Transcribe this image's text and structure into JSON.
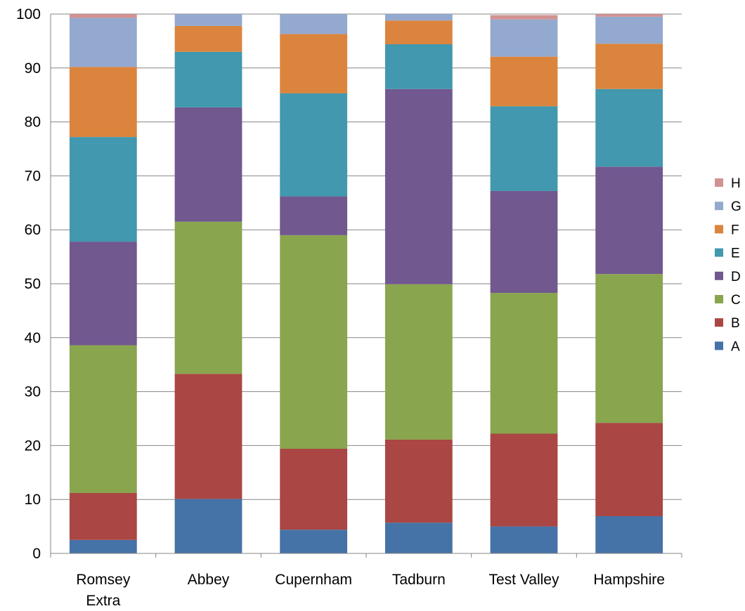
{
  "chart_data": {
    "type": "bar",
    "stacked": true,
    "title": "",
    "xlabel": "",
    "ylabel": "",
    "ylim": [
      0,
      100
    ],
    "yticks": [
      0,
      10,
      20,
      30,
      40,
      50,
      60,
      70,
      80,
      90,
      100
    ],
    "grid": true,
    "legend_position": "right",
    "categories": [
      {
        "lines": [
          "Romsey",
          "Extra"
        ]
      },
      {
        "lines": [
          "Abbey"
        ]
      },
      {
        "lines": [
          "Cupernham"
        ]
      },
      {
        "lines": [
          "Tadburn"
        ]
      },
      {
        "lines": [
          "Test Valley"
        ]
      },
      {
        "lines": [
          "Hampshire"
        ]
      }
    ],
    "series": [
      {
        "name": "A",
        "color": "#4572A7",
        "values": [
          2.5,
          10.1,
          4.4,
          5.7,
          5.0,
          6.9
        ]
      },
      {
        "name": "B",
        "color": "#AA4643",
        "values": [
          8.7,
          23.2,
          15.0,
          15.4,
          17.2,
          17.3
        ]
      },
      {
        "name": "C",
        "color": "#89A54E",
        "values": [
          27.4,
          28.2,
          39.6,
          28.8,
          26.1,
          27.6
        ]
      },
      {
        "name": "D",
        "color": "#71588F",
        "values": [
          19.2,
          21.2,
          7.2,
          36.2,
          18.9,
          19.9
        ]
      },
      {
        "name": "E",
        "color": "#4198AF",
        "values": [
          19.4,
          10.3,
          19.1,
          8.3,
          15.7,
          14.4
        ]
      },
      {
        "name": "F",
        "color": "#DB843D",
        "values": [
          13.0,
          4.8,
          11.0,
          4.4,
          9.2,
          8.4
        ]
      },
      {
        "name": "G",
        "color": "#93A9CF",
        "values": [
          9.1,
          2.2,
          3.7,
          1.2,
          6.9,
          5.0
        ]
      },
      {
        "name": "H",
        "color": "#D19392",
        "values": [
          0.7,
          0.0,
          0.0,
          0.0,
          0.8,
          0.5
        ]
      }
    ]
  }
}
